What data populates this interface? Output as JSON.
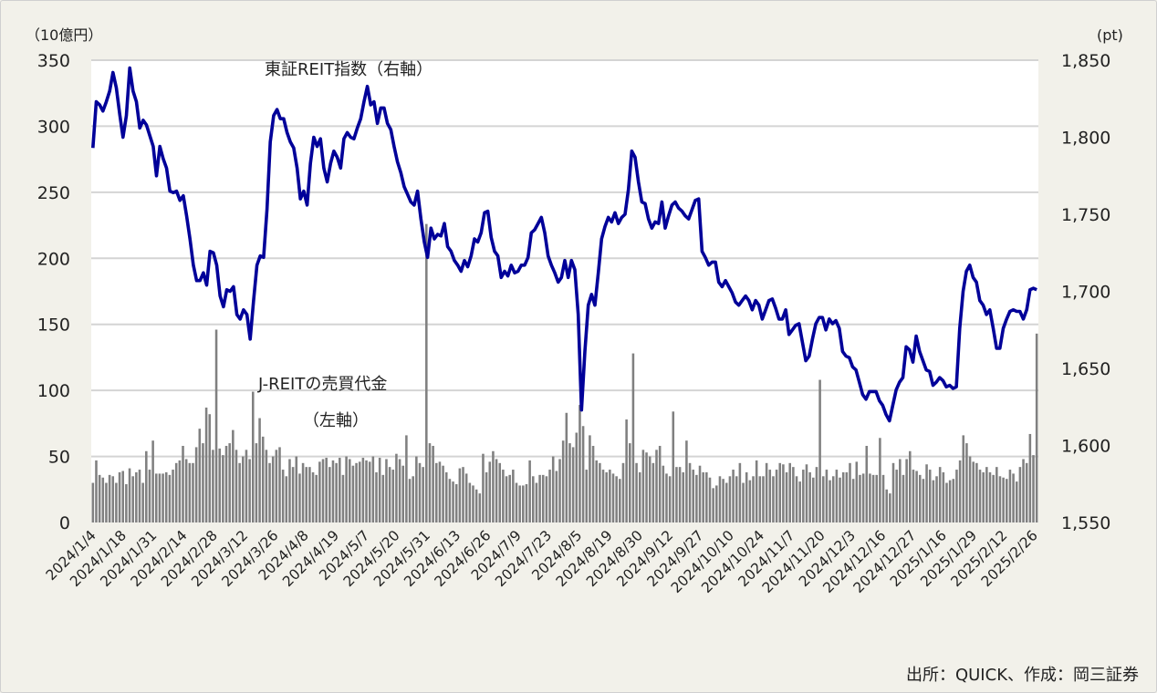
{
  "chart_data": {
    "type": "bar+line",
    "left_axis": {
      "unit": "（10億円）",
      "range": [
        0,
        350
      ],
      "ticks": [
        "0",
        "50",
        "100",
        "150",
        "200",
        "250",
        "300",
        "350"
      ]
    },
    "right_axis": {
      "unit": "(pt)",
      "range": [
        1550,
        1850
      ],
      "ticks": [
        "1,550",
        "1,600",
        "1,650",
        "1,700",
        "1,750",
        "1,800",
        "1,850"
      ]
    },
    "grid": true,
    "x_tick_labels": [
      "2024/1/4",
      "2024/1/18",
      "2024/1/31",
      "2024/2/14",
      "2024/2/28",
      "2024/3/12",
      "2024/3/26",
      "2024/4/8",
      "2024/4/19",
      "2024/5/7",
      "2024/5/20",
      "2024/5/31",
      "2024/6/13",
      "2024/6/26",
      "2024/7/9",
      "2024/7/23",
      "2024/8/5",
      "2024/8/19",
      "2024/8/30",
      "2024/9/12",
      "2024/9/27",
      "2024/10/10",
      "2024/10/24",
      "2024/11/7",
      "2024/11/20",
      "2024/12/3",
      "2024/12/16",
      "2024/12/27",
      "2025/1/16",
      "2025/1/29",
      "2025/2/12",
      "2025/2/26"
    ],
    "series": [
      {
        "name": "J-REITの売買代金",
        "axis": "left",
        "type": "bar",
        "color": "#808080",
        "values": [
          30,
          47,
          36,
          34,
          30,
          36,
          35,
          30,
          38,
          39,
          29,
          41,
          35,
          38,
          40,
          30,
          54,
          40,
          62,
          37,
          37,
          37,
          38,
          36,
          40,
          45,
          47,
          58,
          48,
          45,
          45,
          57,
          71,
          60,
          87,
          82,
          55,
          146,
          56,
          51,
          58,
          60,
          70,
          55,
          45,
          50,
          55,
          48,
          99,
          60,
          79,
          65,
          55,
          45,
          50,
          55,
          57,
          40,
          35,
          48,
          42,
          50,
          37,
          45,
          42,
          42,
          38,
          36,
          46,
          48,
          49,
          42,
          47,
          45,
          49,
          36,
          50,
          48,
          43,
          45,
          46,
          49,
          47,
          46,
          50,
          38,
          49,
          36,
          48,
          42,
          40,
          52,
          48,
          43,
          66,
          33,
          35,
          50,
          45,
          42,
          226,
          60,
          58,
          45,
          46,
          43,
          38,
          33,
          31,
          29,
          41,
          42,
          37,
          30,
          28,
          25,
          22,
          52,
          38,
          46,
          54,
          48,
          45,
          40,
          35,
          36,
          40,
          30,
          28,
          28,
          29,
          47,
          35,
          30,
          36,
          36,
          35,
          40,
          50,
          39,
          48,
          62,
          83,
          60,
          57,
          68,
          89,
          73,
          40,
          66,
          58,
          47,
          45,
          40,
          38,
          40,
          37,
          35,
          33,
          45,
          78,
          60,
          128,
          45,
          38,
          55,
          53,
          50,
          45,
          55,
          58,
          43,
          37,
          35,
          84,
          42,
          42,
          38,
          62,
          45,
          40,
          36,
          43,
          38,
          38,
          34,
          26,
          28,
          35,
          33,
          30,
          35,
          40,
          35,
          45,
          30,
          38,
          32,
          35,
          47,
          35,
          35,
          45,
          40,
          35,
          40,
          45,
          44,
          38,
          45,
          42,
          35,
          31,
          40,
          44,
          38,
          34,
          42,
          108,
          35,
          40,
          32,
          35,
          40,
          34,
          38,
          38,
          45,
          33,
          46,
          36,
          37,
          58,
          37,
          36,
          36,
          64,
          36,
          25,
          22,
          45,
          40,
          48,
          36,
          48,
          54,
          40,
          39,
          36,
          33,
          44,
          40,
          32,
          35,
          42,
          38,
          30,
          32,
          33,
          40,
          47,
          66,
          60,
          50,
          46,
          45,
          40,
          38,
          42,
          38,
          36,
          42,
          35,
          34,
          33,
          40,
          37,
          31,
          42,
          48,
          45,
          67,
          51,
          143
        ]
      },
      {
        "name": "東証REIT指数",
        "axis": "right",
        "type": "line",
        "color": "#000099",
        "values": [
          1793,
          1823,
          1821,
          1817,
          1823,
          1830,
          1842,
          1832,
          1815,
          1800,
          1814,
          1845,
          1830,
          1823,
          1806,
          1811,
          1808,
          1801,
          1794,
          1775,
          1794,
          1786,
          1780,
          1765,
          1764,
          1765,
          1759,
          1762,
          1749,
          1734,
          1717,
          1707,
          1707,
          1712,
          1704,
          1726,
          1725,
          1717,
          1697,
          1690,
          1701,
          1700,
          1703,
          1685,
          1682,
          1688,
          1685,
          1669,
          1694,
          1717,
          1723,
          1722,
          1753,
          1797,
          1814,
          1818,
          1812,
          1812,
          1803,
          1797,
          1793,
          1780,
          1760,
          1765,
          1756,
          1783,
          1800,
          1794,
          1799,
          1780,
          1771,
          1783,
          1791,
          1787,
          1780,
          1799,
          1803,
          1800,
          1799,
          1806,
          1812,
          1823,
          1833,
          1821,
          1823,
          1809,
          1819,
          1819,
          1809,
          1805,
          1794,
          1784,
          1777,
          1768,
          1763,
          1758,
          1756,
          1765,
          1747,
          1732,
          1722,
          1741,
          1734,
          1737,
          1736,
          1744,
          1729,
          1726,
          1720,
          1717,
          1713,
          1720,
          1716,
          1723,
          1734,
          1732,
          1738,
          1751,
          1752,
          1735,
          1726,
          1723,
          1709,
          1713,
          1710,
          1717,
          1712,
          1713,
          1717,
          1717,
          1722,
          1738,
          1740,
          1744,
          1748,
          1738,
          1723,
          1717,
          1712,
          1706,
          1709,
          1720,
          1709,
          1720,
          1714,
          1685,
          1623,
          1661,
          1691,
          1698,
          1691,
          1712,
          1734,
          1742,
          1748,
          1745,
          1751,
          1744,
          1748,
          1750,
          1766,
          1791,
          1787,
          1771,
          1758,
          1757,
          1747,
          1741,
          1745,
          1744,
          1758,
          1741,
          1749,
          1756,
          1758,
          1754,
          1752,
          1749,
          1747,
          1753,
          1759,
          1760,
          1726,
          1722,
          1717,
          1719,
          1719,
          1706,
          1703,
          1707,
          1703,
          1699,
          1693,
          1691,
          1694,
          1697,
          1694,
          1688,
          1694,
          1691,
          1682,
          1688,
          1694,
          1695,
          1689,
          1682,
          1682,
          1688,
          1672,
          1675,
          1678,
          1679,
          1667,
          1655,
          1658,
          1669,
          1679,
          1683,
          1683,
          1675,
          1682,
          1679,
          1681,
          1676,
          1661,
          1658,
          1657,
          1651,
          1649,
          1641,
          1633,
          1630,
          1635,
          1635,
          1635,
          1629,
          1626,
          1620,
          1616,
          1626,
          1636,
          1641,
          1644,
          1664,
          1662,
          1654,
          1671,
          1661,
          1655,
          1649,
          1648,
          1639,
          1641,
          1644,
          1642,
          1638,
          1639,
          1637,
          1638,
          1676,
          1700,
          1713,
          1717,
          1709,
          1706,
          1694,
          1691,
          1685,
          1688,
          1676,
          1663,
          1663,
          1676,
          1682,
          1687,
          1688,
          1687,
          1687,
          1682,
          1688,
          1701,
          1702,
          1701
        ]
      }
    ],
    "annotations": {
      "line_label": "東証REIT指数（右軸）",
      "bar_label_1": "J-REITの売買代金",
      "bar_label_2": "（左軸）"
    },
    "source": "出所：QUICK、作成：岡三証券"
  }
}
